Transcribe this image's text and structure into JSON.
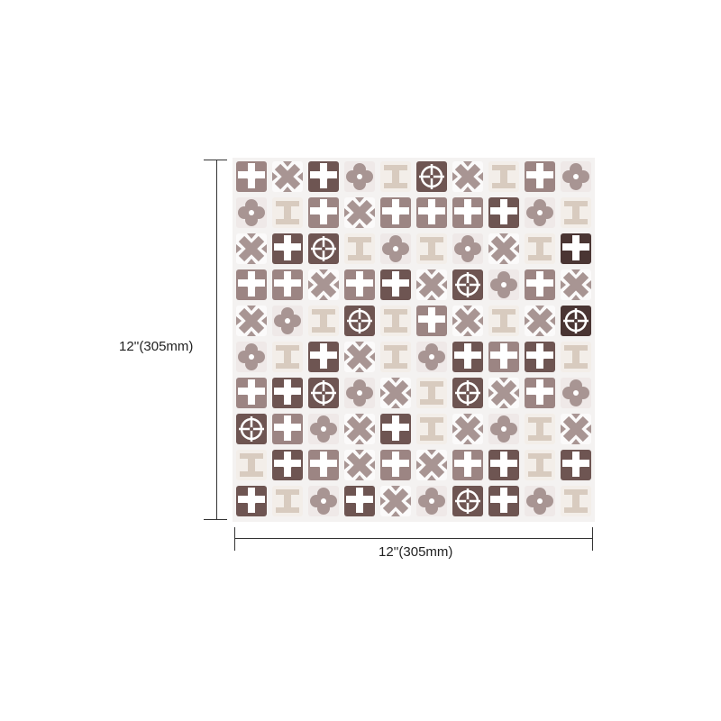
{
  "dimensions": {
    "height_label": "12''(305mm)",
    "width_label": "12''(305mm)"
  },
  "colors": {
    "dark": "#6e5552",
    "darkest": "#4a3533",
    "mid": "#9c8583",
    "mauve": "#a89593",
    "beige": "#d8cbbf",
    "grout": "#f4f2f1"
  },
  "tiles": [
    [
      "cross-mid",
      "x-light",
      "cross-dark",
      "flower",
      "pixel",
      "swirl-dark",
      "x-light",
      "pixel",
      "cross-mid",
      "flower"
    ],
    [
      "flower",
      "pixel",
      "cross-mid",
      "x-light",
      "cross-mid",
      "cross-mid",
      "cross-mid",
      "cross-dark",
      "flower",
      "pixel"
    ],
    [
      "x-light",
      "cross-dark",
      "swirl-dark",
      "pixel",
      "flower",
      "pixel",
      "flower",
      "x-light",
      "pixel",
      "cross-darkest"
    ],
    [
      "cross-mid",
      "cross-mid",
      "x-light",
      "cross-mid",
      "cross-dark",
      "x-light",
      "swirl-dark",
      "flower",
      "cross-mid",
      "x-light"
    ],
    [
      "x-light",
      "flower",
      "pixel",
      "swirl-dark",
      "pixel",
      "cross-mid",
      "x-light",
      "pixel",
      "x-light",
      "swirl-darkest"
    ],
    [
      "flower",
      "pixel",
      "cross-dark",
      "x-light",
      "pixel",
      "flower",
      "cross-dark",
      "cross-mid",
      "cross-dark",
      "pixel"
    ],
    [
      "cross-mid",
      "cross-dark",
      "swirl-dark",
      "flower",
      "x-light",
      "pixel",
      "swirl-dark",
      "x-light",
      "cross-mid",
      "flower"
    ],
    [
      "swirl-dark",
      "cross-mid",
      "flower",
      "x-light",
      "cross-dark",
      "pixel",
      "x-light",
      "flower",
      "pixel",
      "x-light"
    ],
    [
      "pixel",
      "cross-dark",
      "cross-mid",
      "x-light",
      "cross-mid",
      "x-light",
      "cross-mid",
      "cross-dark",
      "pixel",
      "cross-dark"
    ],
    [
      "cross-dark",
      "pixel",
      "flower",
      "cross-dark",
      "x-light",
      "flower",
      "swirl-dark",
      "cross-dark",
      "flower",
      "pixel"
    ]
  ]
}
